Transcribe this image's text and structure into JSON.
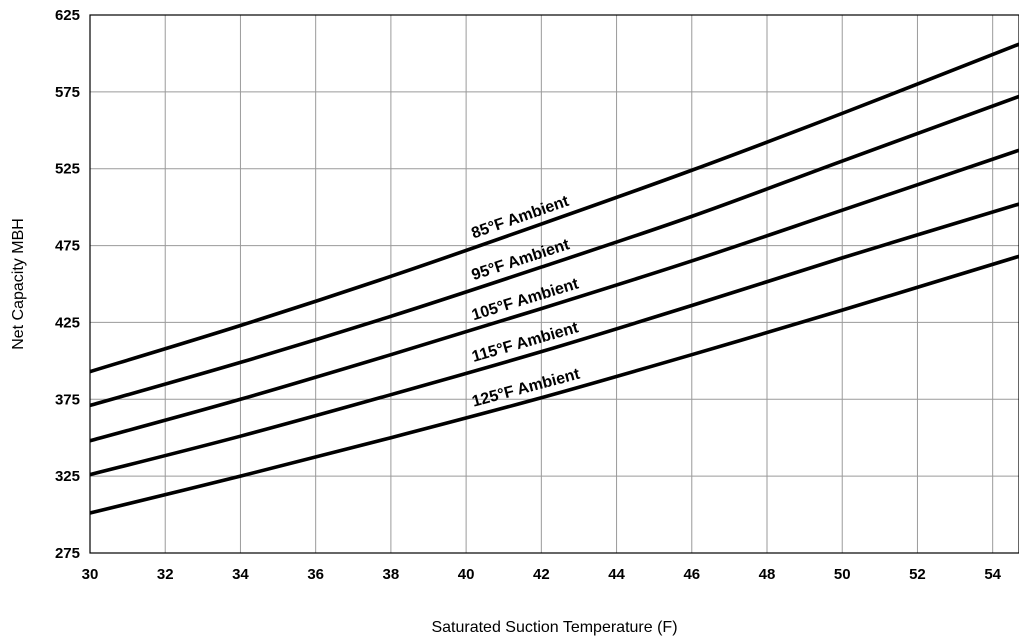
{
  "chart_data": {
    "type": "line",
    "title": "",
    "xlabel": "Saturated Suction Temperature (F)",
    "ylabel": "Net Capacity MBH",
    "xlim": [
      30,
      54.7
    ],
    "ylim": [
      275,
      625
    ],
    "xticks": [
      30,
      32,
      34,
      36,
      38,
      40,
      42,
      44,
      46,
      48,
      50,
      52,
      54
    ],
    "yticks": [
      275,
      325,
      375,
      425,
      475,
      525,
      575,
      625
    ],
    "grid": true,
    "legend": "none",
    "series": [
      {
        "name": "85°F Ambient",
        "x": [
          30,
          34,
          38,
          42,
          46,
          50,
          54.7
        ],
        "y": [
          393,
          423,
          455,
          489,
          524,
          561,
          606
        ]
      },
      {
        "name": "95°F Ambient",
        "x": [
          30,
          34,
          38,
          42,
          46,
          50,
          54.7
        ],
        "y": [
          371,
          399,
          429,
          461,
          494,
          530,
          572
        ]
      },
      {
        "name": "105°F Ambient",
        "x": [
          30,
          34,
          38,
          42,
          46,
          50,
          54.7
        ],
        "y": [
          348,
          375,
          404,
          434,
          465,
          498,
          537
        ]
      },
      {
        "name": "115°F Ambient",
        "x": [
          30,
          34,
          38,
          42,
          46,
          50,
          54.7
        ],
        "y": [
          326,
          351,
          378,
          406,
          436,
          467,
          502
        ]
      },
      {
        "name": "125°F Ambient",
        "x": [
          30,
          34,
          38,
          42,
          46,
          50,
          54.7
        ],
        "y": [
          301,
          325,
          350,
          376,
          404,
          433,
          468
        ]
      }
    ]
  }
}
